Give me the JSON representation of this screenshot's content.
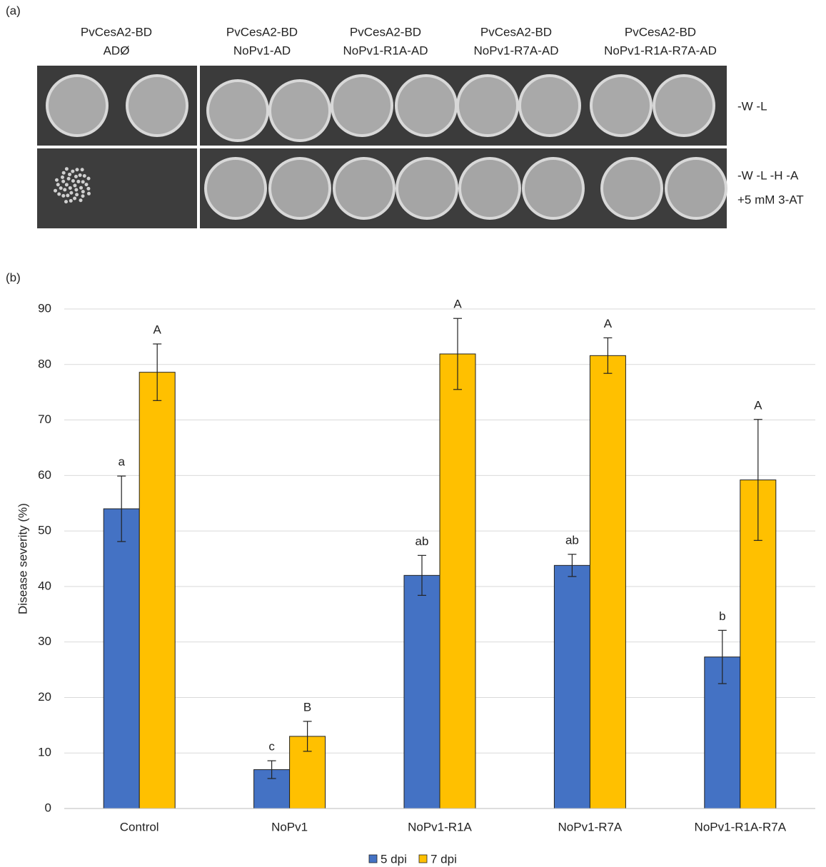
{
  "panel_labels": [
    "(a)",
    "(b)"
  ],
  "panel_a": {
    "columns": [
      [
        "PvCesA2-BD",
        "ADØ"
      ],
      [
        "PvCesA2-BD",
        "NoPv1-AD"
      ],
      [
        "PvCesA2-BD",
        "NoPv1-R1A-AD"
      ],
      [
        "PvCesA2-BD",
        "NoPv1-R7A-AD"
      ],
      [
        "PvCesA2-BD",
        "NoPv1-R1A-R7A-AD"
      ]
    ],
    "rows": [
      [
        "-W -L"
      ],
      [
        "-W -L -H -A",
        "+5 mM 3-AT"
      ]
    ]
  },
  "chart_data": {
    "type": "bar",
    "y_label": "Disease severity (%)",
    "categories": [
      "Control",
      "NoPv1",
      "NoPv1-R1A",
      "NoPv1-R7A",
      "NoPv1-R1A-R7A"
    ],
    "series": [
      {
        "name": "5 dpi",
        "color": "#4472c4",
        "values": [
          54,
          7,
          42,
          43.8,
          27.3
        ],
        "errors": [
          5.9,
          1.6,
          3.6,
          2,
          4.8
        ],
        "letters": [
          "a",
          "c",
          "ab",
          "ab",
          "b"
        ]
      },
      {
        "name": "7 dpi",
        "color": "#ffc000",
        "values": [
          78.6,
          13,
          81.9,
          81.6,
          59.2
        ],
        "errors": [
          5.1,
          2.7,
          6.4,
          3.2,
          10.9
        ],
        "letters": [
          "A",
          "B",
          "A",
          "A",
          "A"
        ]
      }
    ],
    "ylim": [
      0,
      90
    ],
    "yticks": [
      0,
      10,
      20,
      30,
      40,
      50,
      60,
      70,
      80,
      90
    ],
    "grid": true,
    "legend": "bottom"
  }
}
